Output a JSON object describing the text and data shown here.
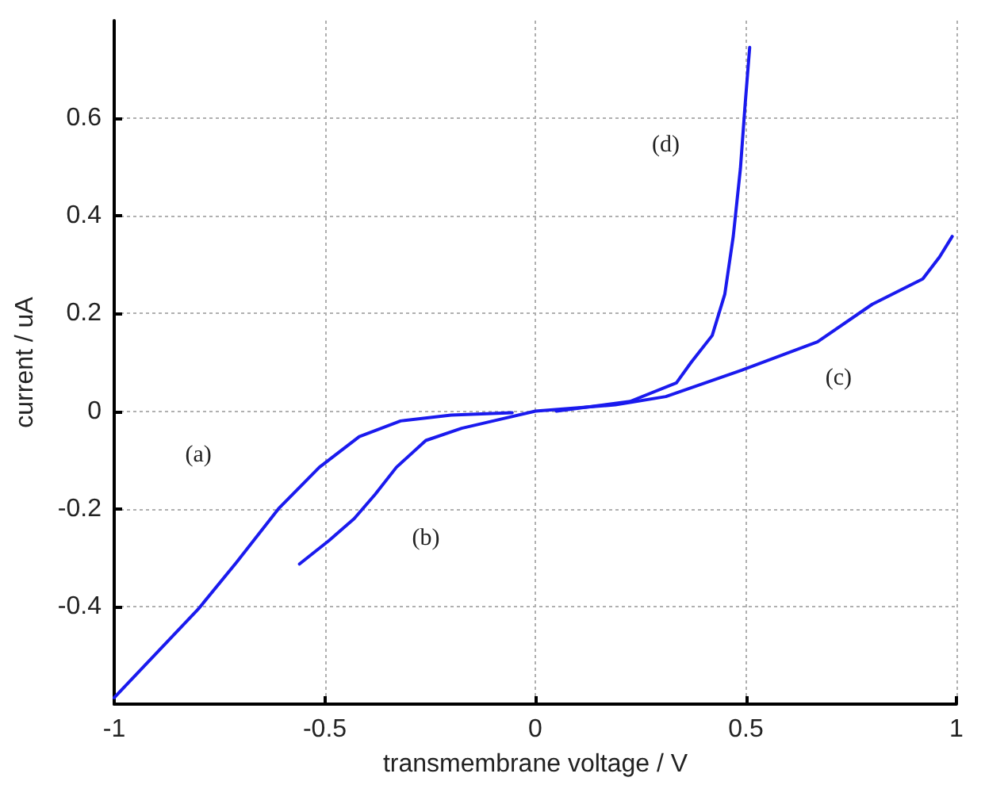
{
  "chart_data": {
    "type": "line",
    "xlabel": "transmembrane voltage / V",
    "ylabel": "current / uA",
    "xlim": [
      -1,
      1
    ],
    "xticks": [
      -1,
      -0.5,
      0,
      0.5,
      1
    ],
    "ylim": [
      -0.6,
      0.8
    ],
    "yticks": [
      -0.4,
      -0.2,
      0,
      0.2,
      0.4,
      0.6
    ],
    "grid": true,
    "marker": "none",
    "line_style": "solid",
    "series": [
      {
        "color": "#1a1aee",
        "x": [
          -1,
          -0.8,
          -0.71,
          -0.61,
          -0.513,
          -0.418,
          -0.32,
          -0.2,
          -0.055
        ],
        "values": [
          -0.587,
          -0.405,
          -0.31,
          -0.2,
          -0.115,
          -0.052,
          -0.02,
          -0.008,
          -0.003
        ]
      },
      {
        "color": "#1a1aee",
        "x": [
          -0.56,
          -0.49,
          -0.43,
          -0.38,
          -0.33,
          -0.26,
          -0.175,
          -0.08,
          0,
          0.19,
          0.31,
          0.49,
          0.67,
          0.8,
          0.92,
          0.96,
          0.99
        ],
        "values": [
          -0.313,
          -0.265,
          -0.22,
          -0.17,
          -0.115,
          -0.06,
          -0.035,
          -0.016,
          0,
          0.013,
          0.03,
          0.084,
          0.142,
          0.219,
          0.271,
          0.316,
          0.358
        ]
      },
      {
        "color": "#1a1aee",
        "x": [
          0.05,
          0.225,
          0.335,
          0.37,
          0.42,
          0.45,
          0.47,
          0.487,
          0.498,
          0.509
        ],
        "values": [
          0,
          0.02,
          0.058,
          0.1,
          0.155,
          0.24,
          0.358,
          0.497,
          0.626,
          0.745
        ]
      }
    ],
    "annotations": [
      {
        "text": "(a)",
        "x": -0.8,
        "y": -0.09
      },
      {
        "text": "(b)",
        "x": -0.26,
        "y": -0.26
      },
      {
        "text": "(c)",
        "x": 0.72,
        "y": 0.068
      },
      {
        "text": "(d)",
        "x": 0.31,
        "y": 0.545
      }
    ]
  }
}
